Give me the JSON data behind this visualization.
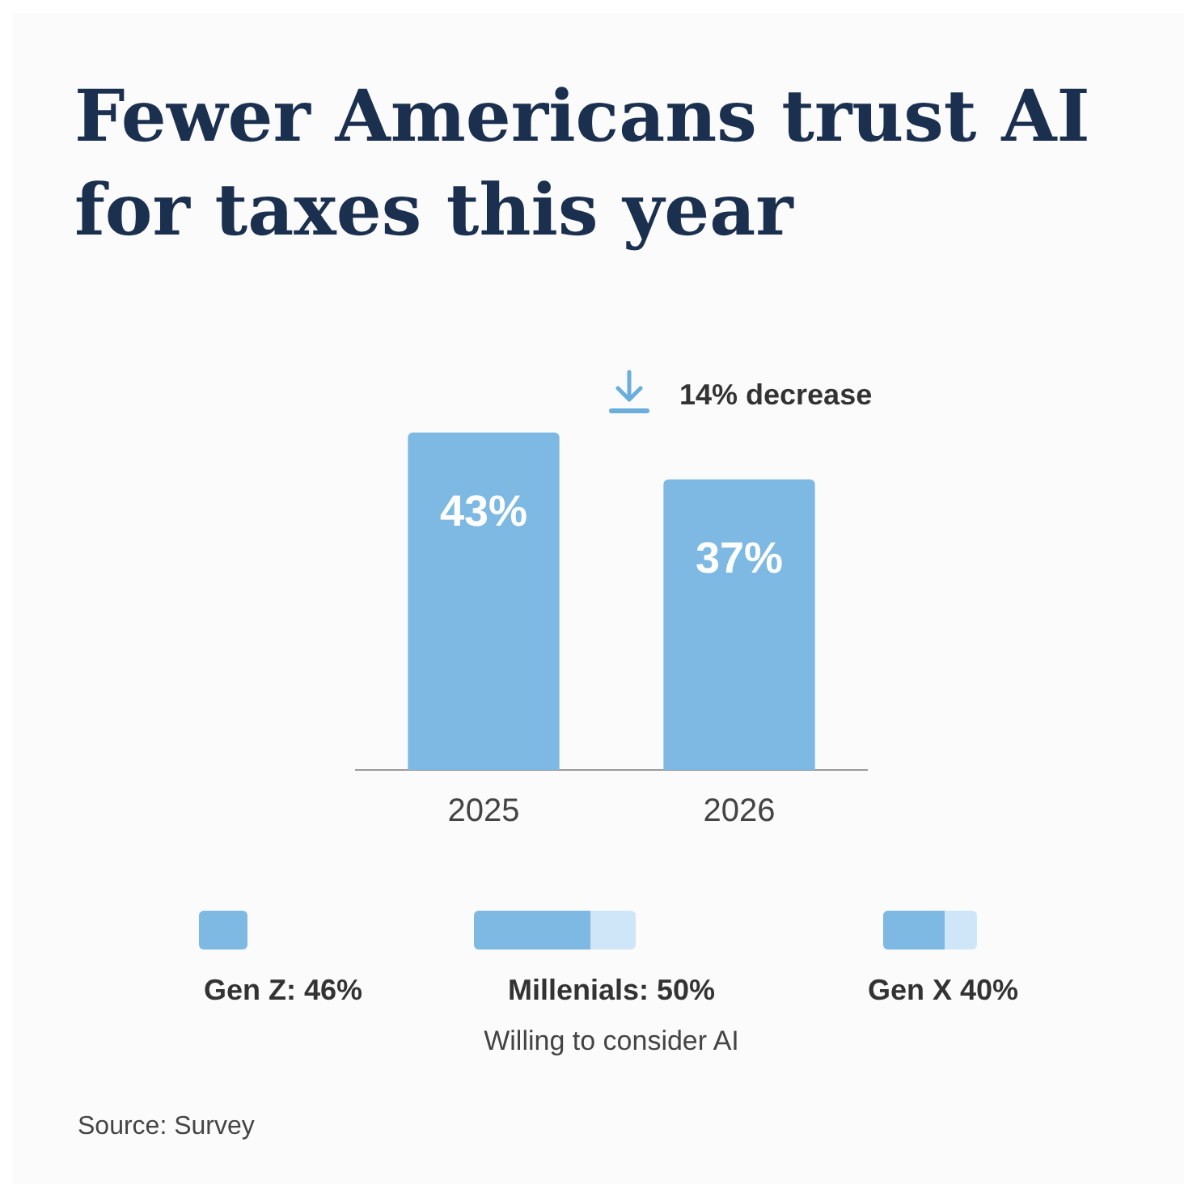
{
  "chart_data": {
    "type": "bar",
    "title": "Fewer Americans trust AI for taxes this year",
    "categories": [
      "2025",
      "2026"
    ],
    "values": [
      43,
      37
    ],
    "value_labels": [
      "43%",
      "37%"
    ],
    "color": "#7db9e2",
    "grid": false,
    "legend": false,
    "tick_labels": "x",
    "annotations": [
      "14% decrease",
      "Gen Z: 46%",
      "Millenials: 50%",
      "Gen X 40%",
      "Willing to consider AI",
      "Source: Survey"
    ]
  }
}
